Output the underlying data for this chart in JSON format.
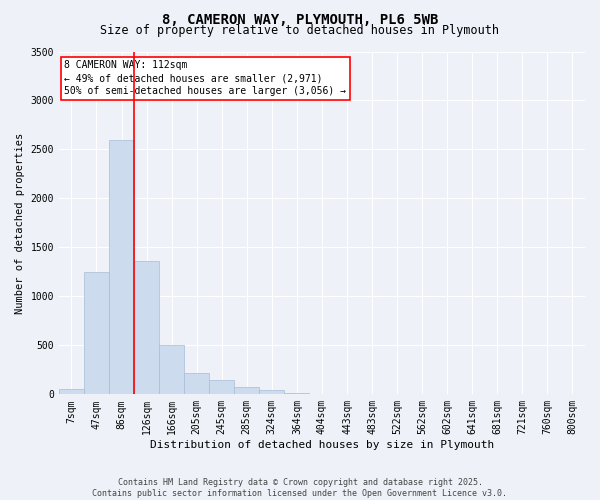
{
  "title_line1": "8, CAMERON WAY, PLYMOUTH, PL6 5WB",
  "title_line2": "Size of property relative to detached houses in Plymouth",
  "xlabel": "Distribution of detached houses by size in Plymouth",
  "ylabel": "Number of detached properties",
  "categories": [
    "7sqm",
    "47sqm",
    "86sqm",
    "126sqm",
    "166sqm",
    "205sqm",
    "245sqm",
    "285sqm",
    "324sqm",
    "364sqm",
    "404sqm",
    "443sqm",
    "483sqm",
    "522sqm",
    "562sqm",
    "602sqm",
    "641sqm",
    "681sqm",
    "721sqm",
    "760sqm",
    "800sqm"
  ],
  "values": [
    55,
    1250,
    2600,
    1360,
    500,
    215,
    145,
    70,
    40,
    12,
    5,
    2,
    1,
    0,
    0,
    0,
    0,
    0,
    0,
    0,
    0
  ],
  "bar_color": "#ccdcee",
  "bar_edge_color": "#aabdd4",
  "red_line_x": 2.5,
  "annotation_box_text": "8 CAMERON WAY: 112sqm\n← 49% of detached houses are smaller (2,971)\n50% of semi-detached houses are larger (3,056) →",
  "ylim": [
    0,
    3500
  ],
  "yticks": [
    0,
    500,
    1000,
    1500,
    2000,
    2500,
    3000,
    3500
  ],
  "background_color": "#eef2f8",
  "grid_color": "#ffffff",
  "footer_line1": "Contains HM Land Registry data © Crown copyright and database right 2025.",
  "footer_line2": "Contains public sector information licensed under the Open Government Licence v3.0.",
  "title_fontsize": 10,
  "subtitle_fontsize": 8.5,
  "tick_fontsize": 7,
  "ylabel_fontsize": 7.5,
  "xlabel_fontsize": 8,
  "annotation_fontsize": 7,
  "footer_fontsize": 6
}
